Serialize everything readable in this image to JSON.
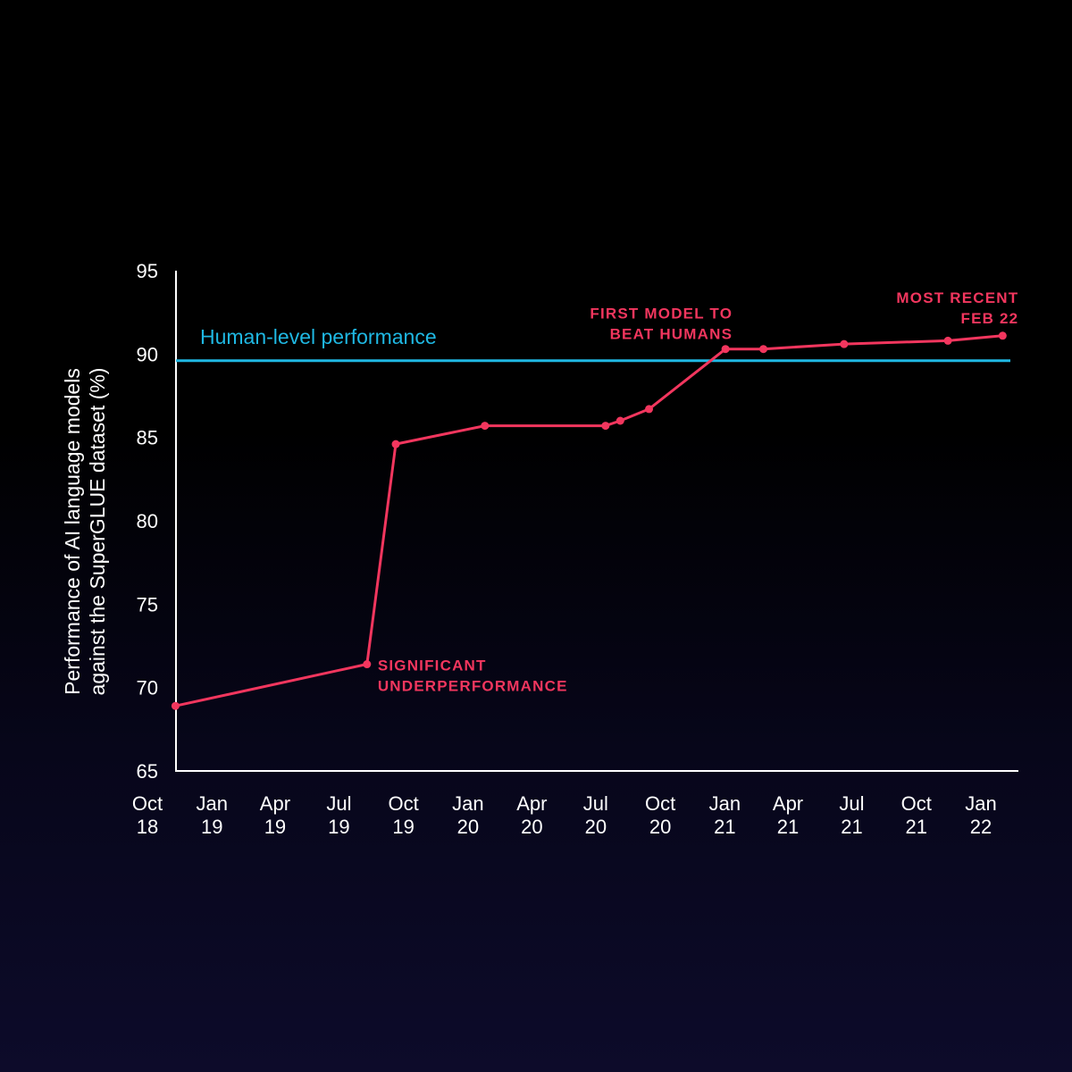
{
  "chart_data": {
    "type": "line",
    "ylabel": [
      "Performance of AI language models",
      "against the SuperGLUE dataset (%)"
    ],
    "ylim": [
      65,
      95
    ],
    "y_ticks": [
      65,
      70,
      75,
      80,
      85,
      90,
      95
    ],
    "x_ticks": [
      {
        "date": "2018-10",
        "line1": "Oct",
        "line2": "18"
      },
      {
        "date": "2019-01",
        "line1": "Jan",
        "line2": "19"
      },
      {
        "date": "2019-04",
        "line1": "Apr",
        "line2": "19"
      },
      {
        "date": "2019-07",
        "line1": "Jul",
        "line2": "19"
      },
      {
        "date": "2019-10",
        "line1": "Oct",
        "line2": "19"
      },
      {
        "date": "2020-01",
        "line1": "Jan",
        "line2": "20"
      },
      {
        "date": "2020-04",
        "line1": "Apr",
        "line2": "20"
      },
      {
        "date": "2020-07",
        "line1": "Jul",
        "line2": "20"
      },
      {
        "date": "2020-10",
        "line1": "Oct",
        "line2": "20"
      },
      {
        "date": "2021-01",
        "line1": "Jan",
        "line2": "21"
      },
      {
        "date": "2021-04",
        "line1": "Apr",
        "line2": "21"
      },
      {
        "date": "2021-07",
        "line1": "Jul",
        "line2": "21"
      },
      {
        "date": "2021-10",
        "line1": "Oct",
        "line2": "21"
      },
      {
        "date": "2022-01",
        "line1": "Jan",
        "line2": "22"
      }
    ],
    "xlim": [
      "2018-10-01",
      "2022-02-28"
    ],
    "series": [
      {
        "color": "#f2365e",
        "points": [
          {
            "date": "2018-11-10",
            "y": 68.9
          },
          {
            "date": "2019-08-10",
            "y": 71.4
          },
          {
            "date": "2019-09-20",
            "y": 84.6
          },
          {
            "date": "2020-01-25",
            "y": 85.7
          },
          {
            "date": "2020-07-15",
            "y": 85.7
          },
          {
            "date": "2020-08-05",
            "y": 86.0
          },
          {
            "date": "2020-09-15",
            "y": 86.7
          },
          {
            "date": "2021-01-02",
            "y": 90.3
          },
          {
            "date": "2021-02-25",
            "y": 90.3
          },
          {
            "date": "2021-06-20",
            "y": 90.6
          },
          {
            "date": "2021-11-15",
            "y": 90.8
          },
          {
            "date": "2022-02-01",
            "y": 91.1
          }
        ]
      }
    ],
    "reference_line": {
      "label": "Human-level performance",
      "y": 89.6,
      "color": "#1fb8e3"
    },
    "annotations": [
      {
        "lines": [
          "SIGNIFICANT",
          "UNDERPERFORMANCE"
        ],
        "date": "2019-08-10",
        "y": 71.4,
        "anchor": "start"
      },
      {
        "lines": [
          "FIRST MODEL TO",
          "BEAT HUMANS"
        ],
        "date": "2021-01-02",
        "y": 90.3,
        "anchor": "end"
      },
      {
        "lines": [
          "MOST RECENT",
          "FEB 22"
        ],
        "date": "2022-02-01",
        "y": 91.1,
        "anchor": "end"
      }
    ],
    "grid": false
  }
}
